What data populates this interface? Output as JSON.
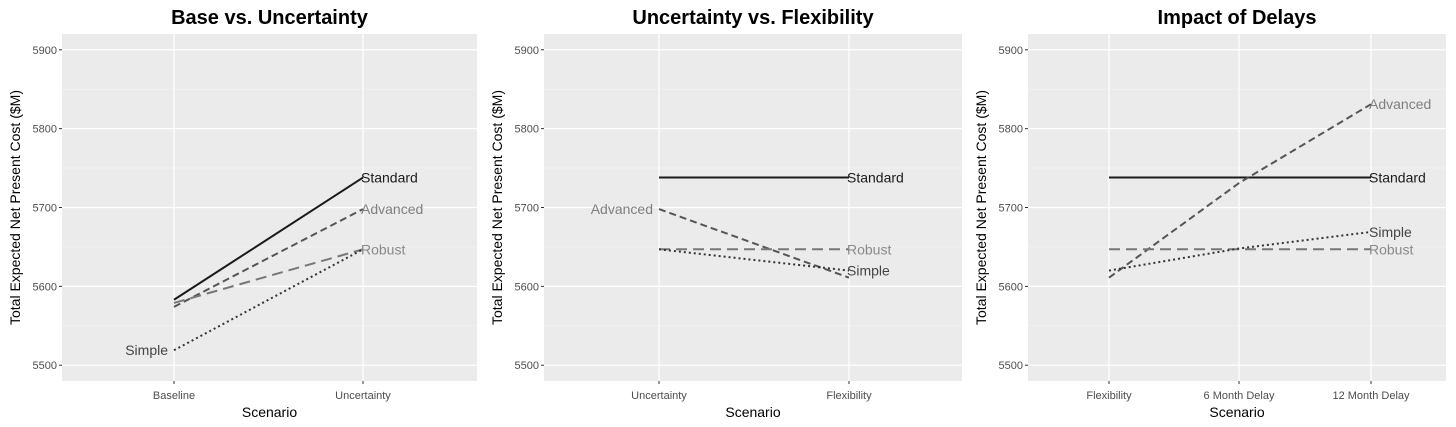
{
  "chart_data": [
    {
      "type": "line",
      "title": "Base vs. Uncertainty",
      "xlabel": "Scenario",
      "ylabel": "Total Expected Net Present Cost ($M)",
      "categories": [
        "Baseline",
        "Uncertainty"
      ],
      "ylim": [
        5480,
        5920
      ],
      "yticks": [
        5500,
        5600,
        5700,
        5800,
        5900
      ],
      "grid": true,
      "legend": "direct labels",
      "series": [
        {
          "name": "Standard",
          "values": [
            5583,
            5738
          ],
          "linetype": "solid",
          "color": "#1a1a1a",
          "label_color": "#1a1a1a",
          "label_at": "end"
        },
        {
          "name": "Advanced",
          "values": [
            5574,
            5698
          ],
          "linetype": "dashed",
          "color": "#555555",
          "label_color": "#7f7f7f",
          "label_at": "end"
        },
        {
          "name": "Robust",
          "values": [
            5579,
            5647
          ],
          "linetype": "longdash",
          "color": "#777777",
          "label_color": "#8a8a8a",
          "label_at": "end"
        },
        {
          "name": "Simple",
          "values": [
            5519,
            5647
          ],
          "linetype": "dotted",
          "color": "#333333",
          "label_color": "#444444",
          "label_at": "start"
        }
      ]
    },
    {
      "type": "line",
      "title": "Uncertainty vs. Flexibility",
      "xlabel": "Scenario",
      "ylabel": "Total Expected Net Present Cost ($M)",
      "categories": [
        "Uncertainty",
        "Flexibility"
      ],
      "ylim": [
        5480,
        5920
      ],
      "yticks": [
        5500,
        5600,
        5700,
        5800,
        5900
      ],
      "grid": true,
      "legend": "direct labels",
      "series": [
        {
          "name": "Standard",
          "values": [
            5738,
            5738
          ],
          "linetype": "solid",
          "color": "#1a1a1a",
          "label_color": "#1a1a1a",
          "label_at": "end"
        },
        {
          "name": "Advanced",
          "values": [
            5698,
            5611
          ],
          "linetype": "dashed",
          "color": "#555555",
          "label_color": "#7f7f7f",
          "label_at": "start"
        },
        {
          "name": "Robust",
          "values": [
            5647,
            5647
          ],
          "linetype": "longdash",
          "color": "#777777",
          "label_color": "#8a8a8a",
          "label_at": "end"
        },
        {
          "name": "Simple",
          "values": [
            5647,
            5620
          ],
          "linetype": "dotted",
          "color": "#333333",
          "label_color": "#444444",
          "label_at": "end"
        }
      ]
    },
    {
      "type": "line",
      "title": "Impact of Delays",
      "xlabel": "Scenario",
      "ylabel": "Total Expected Net Present Cost ($M)",
      "categories": [
        "Flexibility",
        "6 Month Delay",
        "12 Month Delay"
      ],
      "ylim": [
        5480,
        5920
      ],
      "yticks": [
        5500,
        5600,
        5700,
        5800,
        5900
      ],
      "grid": true,
      "legend": "direct labels",
      "series": [
        {
          "name": "Standard",
          "values": [
            5738,
            5738,
            5738
          ],
          "linetype": "solid",
          "color": "#1a1a1a",
          "label_color": "#1a1a1a",
          "label_at": "end"
        },
        {
          "name": "Advanced",
          "values": [
            5611,
            5731,
            5831
          ],
          "linetype": "dashed",
          "color": "#555555",
          "label_color": "#7f7f7f",
          "label_at": "end"
        },
        {
          "name": "Robust",
          "values": [
            5647,
            5647,
            5647
          ],
          "linetype": "longdash",
          "color": "#777777",
          "label_color": "#8a8a8a",
          "label_at": "end"
        },
        {
          "name": "Simple",
          "values": [
            5620,
            5648,
            5669
          ],
          "linetype": "dotted",
          "color": "#333333",
          "label_color": "#444444",
          "label_at": "end"
        }
      ]
    }
  ]
}
